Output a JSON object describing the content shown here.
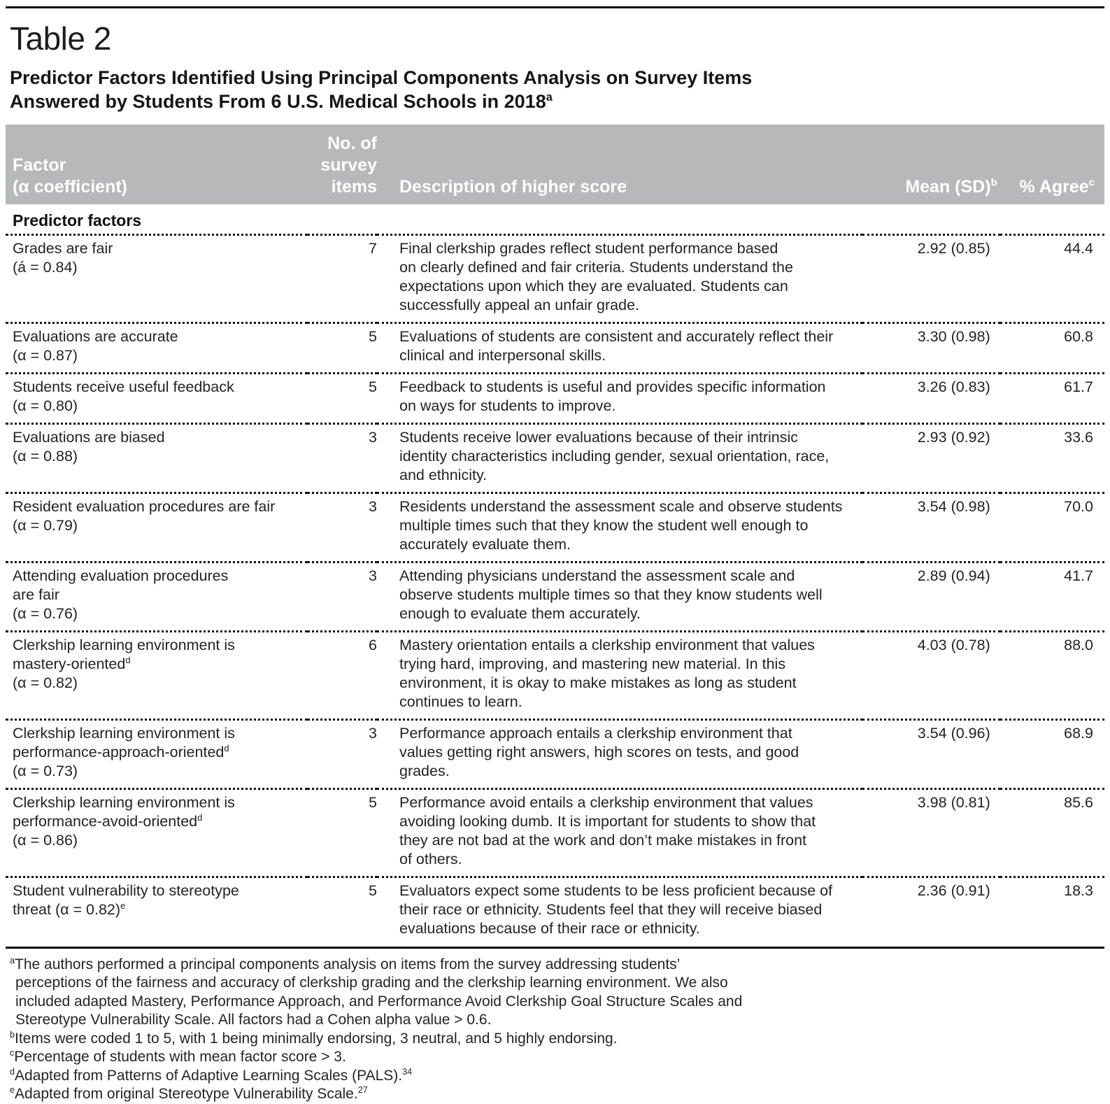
{
  "colors": {
    "header_bg": "#b6b8ba",
    "header_text": "#ffffff",
    "body_text": "#232323"
  },
  "page": {
    "title": "Table 2",
    "subtitle_line1": "Predictor Factors Identified Using Principal Components Analysis on Survey Items",
    "subtitle_line2": "Answered by Students From 6 U.S. Medical Schools in 2018",
    "subtitle_sup": "a"
  },
  "table": {
    "header": {
      "factor_line1": "Factor",
      "factor_line2": "(α coefficient)",
      "items_line1": "No. of",
      "items_line2": "survey",
      "items_line3": "items",
      "description": "Description of higher score",
      "mean": "Mean (SD)",
      "mean_sup": "b",
      "agree": "% Agree",
      "agree_sup": "c"
    },
    "section": "Predictor factors",
    "rows": [
      {
        "factor": [
          "Grades are fair",
          "(á = 0.84)"
        ],
        "items": "7",
        "desc": [
          "Final clerkship grades reflect student performance based",
          "on clearly defined and fair criteria. Students understand the",
          "expectations upon which they are evaluated. Students can",
          "successfully appeal an unfair grade."
        ],
        "mean": "2.92 (0.85)",
        "agree": "44.4"
      },
      {
        "factor": [
          "Evaluations are accurate",
          "(α = 0.87)"
        ],
        "items": "5",
        "desc": [
          "Evaluations of students are consistent and accurately reflect their",
          "clinical and interpersonal skills."
        ],
        "mean": "3.30 (0.98)",
        "agree": "60.8"
      },
      {
        "factor": [
          "Students receive useful feedback",
          "(α = 0.80)"
        ],
        "items": "5",
        "desc": [
          "Feedback to students is useful and provides specific information",
          "on ways for students to improve."
        ],
        "mean": "3.26 (0.83)",
        "agree": "61.7"
      },
      {
        "factor": [
          "Evaluations are biased",
          "(α = 0.88)"
        ],
        "items": "3",
        "desc": [
          "Students receive lower evaluations because of their intrinsic",
          "identity characteristics including gender, sexual orientation, race,",
          "and ethnicity."
        ],
        "mean": "2.93 (0.92)",
        "agree": "33.6"
      },
      {
        "factor": [
          "Resident evaluation procedures are fair",
          "(α = 0.79)"
        ],
        "items": "3",
        "desc": [
          "Residents understand the assessment scale and observe students",
          "multiple times such that they know the student well enough to",
          "accurately evaluate them."
        ],
        "mean": "3.54 (0.98)",
        "agree": "70.0"
      },
      {
        "factor": [
          "Attending evaluation procedures",
          "are fair",
          "(α = 0.76)"
        ],
        "items": "3",
        "desc": [
          "Attending physicians understand the assessment scale and",
          "observe students multiple times so that they know students well",
          "enough to evaluate them accurately."
        ],
        "mean": "2.89 (0.94)",
        "agree": "41.7"
      },
      {
        "factor": [
          "Clerkship learning environment is",
          {
            "text": "mastery-oriented",
            "sup": "d"
          },
          "(α = 0.82)"
        ],
        "items": "6",
        "desc": [
          "Mastery orientation entails a clerkship environment that values",
          "trying hard, improving, and mastering new material. In this",
          "environment, it is okay to make mistakes as long as student",
          "continues to learn."
        ],
        "mean": "4.03 (0.78)",
        "agree": "88.0"
      },
      {
        "factor": [
          "Clerkship learning environment is",
          {
            "text": "performance-approach-oriented",
            "sup": "d"
          },
          "(α = 0.73)"
        ],
        "items": "3",
        "desc": [
          "Performance approach entails a clerkship environment that",
          "values getting right answers, high scores on tests, and good",
          "grades."
        ],
        "mean": "3.54 (0.96)",
        "agree": "68.9"
      },
      {
        "factor": [
          "Clerkship learning environment is",
          {
            "text": "performance-avoid-oriented",
            "sup": "d"
          },
          "(α = 0.86)"
        ],
        "items": "5",
        "desc": [
          "Performance avoid entails a clerkship environment that values",
          "avoiding looking dumb. It is important for students to show that",
          "they are not bad at the work and don’t make mistakes in front",
          "of others."
        ],
        "mean": "3.98 (0.81)",
        "agree": "85.6"
      },
      {
        "factor": [
          "Student vulnerability to stereotype",
          {
            "text": "threat (α = 0.82)",
            "sup": "e"
          }
        ],
        "items": "5",
        "desc": [
          "Evaluators expect some students to be less proficient because of",
          "their race or ethnicity. Students feel that they will receive biased",
          "evaluations because of their race or ethnicity."
        ],
        "mean": "2.36 (0.91)",
        "agree": "18.3"
      }
    ]
  },
  "footnotes": [
    {
      "marker": "a",
      "lines": [
        "The authors performed a principal components analysis on items from the survey addressing students’",
        "perceptions of the fairness and accuracy of clerkship grading and the clerkship learning environment. We also",
        "included adapted Mastery, Performance Approach, and Performance Avoid Clerkship Goal Structure Scales and",
        "Stereotype Vulnerability Scale. All factors had a Cohen alpha value > 0.6."
      ]
    },
    {
      "marker": "b",
      "lines": [
        "Items were coded 1 to 5, with 1 being minimally endorsing, 3 neutral, and 5 highly endorsing."
      ]
    },
    {
      "marker": "c",
      "lines": [
        "Percentage of students with mean factor score > 3."
      ]
    },
    {
      "marker": "d",
      "lines": [
        "Adapted from Patterns of Adaptive Learning Scales (PALS)."
      ],
      "ref": "34"
    },
    {
      "marker": "e",
      "lines": [
        "Adapted from original Stereotype Vulnerability Scale."
      ],
      "ref": "27"
    }
  ]
}
